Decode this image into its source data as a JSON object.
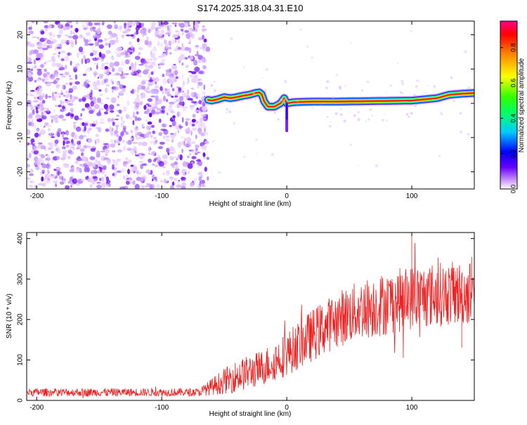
{
  "chart_data": [
    {
      "type": "heatmap",
      "title": "S174.2025.318.04.31.E10",
      "xlabel": "Height of straight line (km)",
      "ylabel": "Frequency (Hz)",
      "xlim": [
        -208,
        150
      ],
      "ylim": [
        -25,
        24
      ],
      "xticks": [
        -200,
        -100,
        0,
        100
      ],
      "yticks": [
        -20,
        -10,
        0,
        10,
        20
      ],
      "noise_region_x": [
        -208,
        -63
      ],
      "ridge": {
        "description": "spectral line frequency vs height",
        "x": [
          -63,
          -60,
          -55,
          -50,
          -45,
          -40,
          -35,
          -30,
          -25,
          -22,
          -20,
          -18,
          -15,
          -10,
          -5,
          -2,
          0,
          5,
          10,
          20,
          40,
          60,
          80,
          100,
          120,
          130,
          140,
          150
        ],
        "freq": [
          1.0,
          0.8,
          1.2,
          1.8,
          1.5,
          1.8,
          2.2,
          2.5,
          3.0,
          3.2,
          2.6,
          0.5,
          -1.0,
          -1.0,
          0.0,
          1.5,
          0.0,
          0.3,
          0.4,
          0.5,
          0.5,
          0.6,
          0.7,
          0.8,
          1.5,
          2.5,
          2.8,
          3.0
        ],
        "spike": {
          "x": 0,
          "freq_min": -8
        }
      },
      "colorbar": {
        "label": "Normalized spectral amplitude",
        "range": [
          0.0,
          0.95
        ],
        "ticks": [
          "0.0",
          "0.2",
          "0.4",
          "0.6",
          "0.8"
        ]
      }
    },
    {
      "type": "line",
      "xlabel": "Height of straight line (km)",
      "ylabel": "SNR (10 * v/v)",
      "xlim": [
        -208,
        150
      ],
      "ylim": [
        0,
        415
      ],
      "xticks": [
        -200,
        -100,
        0,
        100
      ],
      "yticks": [
        0,
        100,
        200,
        300,
        400
      ],
      "series": [
        {
          "name": "SNR",
          "color": "#ee2222",
          "x": [
            -208,
            -150,
            -100,
            -70,
            -52,
            -40,
            -20,
            0,
            20,
            40,
            60,
            80,
            100,
            120,
            140,
            150
          ],
          "mean": [
            20,
            20,
            20,
            20,
            45,
            60,
            80,
            115,
            160,
            200,
            225,
            240,
            255,
            262,
            265,
            268
          ],
          "spread": [
            10,
            10,
            10,
            10,
            30,
            40,
            45,
            55,
            65,
            70,
            75,
            80,
            80,
            80,
            80,
            80
          ],
          "peaks": [
            {
              "x": 100,
              "y": 412
            },
            {
              "x": 148,
              "y": 355
            },
            {
              "x": 140,
              "y": 130
            }
          ]
        }
      ]
    }
  ]
}
